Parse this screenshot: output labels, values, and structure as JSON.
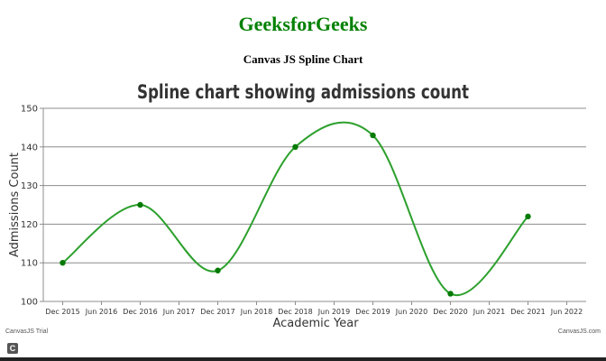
{
  "page": {
    "title": "GeeksforGeeks",
    "subtitle": "Canvas JS Spline Chart",
    "watermark_left": "CanvasJS Trial",
    "watermark_right": "CanvasJS.com",
    "bottom_icon": "canvasjs-logo-icon",
    "bottom_icon_glyph": "C"
  },
  "colors": {
    "title": "#008000",
    "series": "#2ca02c",
    "point": "#007a00",
    "grid": "#8c8c8c",
    "axis_text": "#333333",
    "chart_title": "#333333"
  },
  "chart_data": {
    "type": "line",
    "spline": true,
    "title": "Spline chart showing admissions count",
    "xlabel": "Academic Year",
    "ylabel": "Admissions Count",
    "ylim": [
      100,
      150
    ],
    "yticks": [
      100,
      110,
      120,
      130,
      140,
      150
    ],
    "xlim": [
      "2015-09",
      "2022-09"
    ],
    "xticks": [
      "Dec 2015",
      "Jun 2016",
      "Dec 2016",
      "Jun 2017",
      "Dec 2017",
      "Jun 2018",
      "Dec 2018",
      "Jun 2019",
      "Dec 2019",
      "Jun 2020",
      "Dec 2020",
      "Jun 2021",
      "Dec 2021",
      "Jun 2022"
    ],
    "grid": true,
    "legend": "none",
    "x": [
      "Dec 2015",
      "Dec 2016",
      "Dec 2017",
      "Dec 2018",
      "Dec 2019",
      "Dec 2020",
      "Dec 2021"
    ],
    "y": [
      110,
      125,
      108,
      140,
      143,
      102,
      122
    ]
  }
}
